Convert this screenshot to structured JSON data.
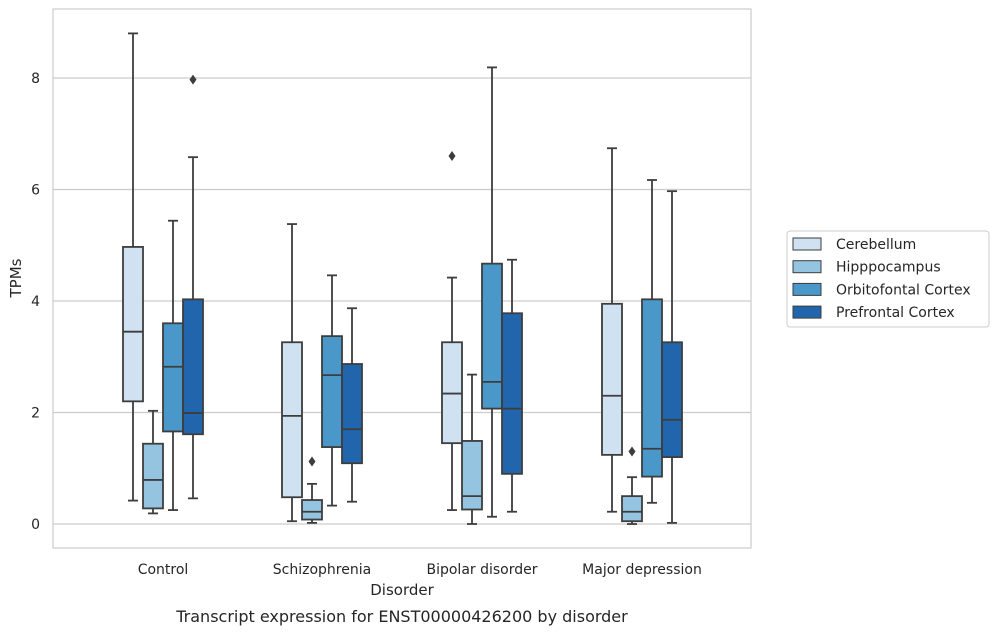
{
  "chart_data": {
    "type": "box",
    "title": "",
    "caption": "Transcript expression for ENST00000426200 by disorder",
    "xlabel": "Disorder",
    "ylabel": "TPMs",
    "ylim": [
      -0.4,
      9.25
    ],
    "yticks": [
      0,
      2,
      4,
      6,
      8
    ],
    "grid": true,
    "legend_position": "right",
    "categories": [
      "Control",
      "Schizophrenia",
      "Bipolar disorder",
      "Major depression"
    ],
    "series": [
      {
        "name": "Cerebellum",
        "color": "#d0e1f2",
        "boxes": [
          {
            "min": 0.42,
            "q1": 2.2,
            "median": 3.45,
            "q3": 4.97,
            "max": 8.8,
            "outliers": []
          },
          {
            "min": 0.05,
            "q1": 0.48,
            "median": 1.94,
            "q3": 3.26,
            "max": 5.38,
            "outliers": []
          },
          {
            "min": 0.25,
            "q1": 1.45,
            "median": 2.34,
            "q3": 3.26,
            "max": 4.42,
            "outliers": [
              6.6
            ]
          },
          {
            "min": 0.22,
            "q1": 1.24,
            "median": 2.3,
            "q3": 3.95,
            "max": 6.74,
            "outliers": []
          }
        ]
      },
      {
        "name": "Hipppocampus",
        "color": "#94c4df",
        "boxes": [
          {
            "min": 0.19,
            "q1": 0.28,
            "median": 0.79,
            "q3": 1.44,
            "max": 2.03,
            "outliers": []
          },
          {
            "min": 0.02,
            "q1": 0.08,
            "median": 0.22,
            "q3": 0.43,
            "max": 0.72,
            "outliers": [
              1.12
            ]
          },
          {
            "min": 0.0,
            "q1": 0.26,
            "median": 0.5,
            "q3": 1.49,
            "max": 2.68,
            "outliers": []
          },
          {
            "min": 0.0,
            "q1": 0.05,
            "median": 0.22,
            "q3": 0.5,
            "max": 0.84,
            "outliers": [
              1.3
            ]
          }
        ]
      },
      {
        "name": "Orbitofontal Cortex",
        "color": "#4a98c9",
        "boxes": [
          {
            "min": 0.25,
            "q1": 1.66,
            "median": 2.82,
            "q3": 3.6,
            "max": 5.44,
            "outliers": []
          },
          {
            "min": 0.33,
            "q1": 1.38,
            "median": 2.67,
            "q3": 3.37,
            "max": 4.46,
            "outliers": []
          },
          {
            "min": 0.13,
            "q1": 2.07,
            "median": 2.55,
            "q3": 4.67,
            "max": 8.19,
            "outliers": []
          },
          {
            "min": 0.38,
            "q1": 0.85,
            "median": 1.35,
            "q3": 4.03,
            "max": 6.17,
            "outliers": []
          }
        ]
      },
      {
        "name": "Prefrontal Cortex",
        "color": "#2166ac",
        "boxes": [
          {
            "min": 0.46,
            "q1": 1.61,
            "median": 1.99,
            "q3": 4.03,
            "max": 6.58,
            "outliers": [
              7.97
            ]
          },
          {
            "min": 0.4,
            "q1": 1.09,
            "median": 1.7,
            "q3": 2.87,
            "max": 3.87,
            "outliers": []
          },
          {
            "min": 0.22,
            "q1": 0.9,
            "median": 2.07,
            "q3": 3.78,
            "max": 4.74,
            "outliers": []
          },
          {
            "min": 0.02,
            "q1": 1.2,
            "median": 1.87,
            "q3": 3.26,
            "max": 5.97,
            "outliers": []
          }
        ]
      }
    ]
  }
}
